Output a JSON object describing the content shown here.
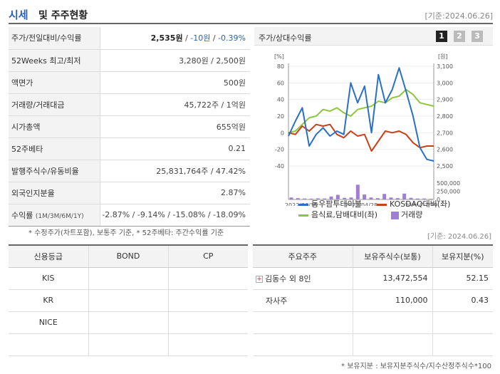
{
  "header": {
    "title_part1": "시세",
    "title_part2": "및 주주현황",
    "date": "[기준:2024.06.26]"
  },
  "quote": {
    "price_label": "주가/전일대비/수익률",
    "price": "2,535원",
    "change": "-10원",
    "change_rate": "-0.39%",
    "week52_label": "52Weeks 최고/최저",
    "week52_value": "3,280원 / 2,500원",
    "face_label": "액면가",
    "face_value": "500원",
    "volume_label": "거래량/거래대금",
    "volume_value": "45,722주 / 1억원",
    "mcap_label": "시가총액",
    "mcap_value": "655억원",
    "beta_label": "52주베타",
    "beta_value": "0.21",
    "shares_label": "발행주식수/유동비율",
    "shares_value": "25,831,764주 / 47.42%",
    "foreign_label": "외국인지분율",
    "foreign_value": "2.87%",
    "return_label": "수익률",
    "return_period": "(1M/3M/6M/1Y)",
    "return_value": "-2.87% / -9.14% / -15.08% / -18.09%",
    "footnote": "* 수정주가(차트포함), 보통주 기준, * 52주베타: 주간수익률 기준",
    "date2": "[기준: 2024.06.26]"
  },
  "chart_panel": {
    "title": "주가/상대수익률",
    "pages": [
      "1",
      "2",
      "3"
    ]
  },
  "chart_data": {
    "type": "line",
    "x_tick_labels": [
      "2022/06/30",
      "2023/04/28",
      "2024/02/29"
    ],
    "y_left_unit": "[%]",
    "y_left_ticks": [
      "80",
      "60",
      "40",
      "20",
      "0",
      "-20",
      "-40"
    ],
    "y_left_range": [
      -40,
      80
    ],
    "y_right_unit": "[원]",
    "y_right_ticks": [
      "3,100",
      "3,000",
      "2,900",
      "2,800",
      "2,700",
      "2,600",
      "2,500"
    ],
    "y_right_range": [
      2500,
      3100
    ],
    "y_volume_ticks": [
      "500,000",
      "250,000",
      "0"
    ],
    "y_volume_range": [
      0,
      500000
    ],
    "series": [
      {
        "name": "동우팜투테이블",
        "axis": "right",
        "color": "#2a6fc4",
        "values": [
          2680,
          2770,
          2850,
          2620,
          2690,
          2730,
          2680,
          2710,
          2690,
          3000,
          2880,
          2980,
          2700,
          3050,
          2880,
          2960,
          3090,
          2950,
          2800,
          2610,
          2540,
          2530
        ]
      },
      {
        "name": "KOSDAQ대비(좌)",
        "axis": "left",
        "color": "#c8401a",
        "values": [
          0,
          -2,
          8,
          2,
          10,
          8,
          10,
          -2,
          -6,
          2,
          -4,
          -2,
          -22,
          -10,
          2,
          0,
          2,
          -2,
          -12,
          -18,
          -16,
          -16
        ]
      },
      {
        "name": "음식료,담배대비(좌)",
        "axis": "left",
        "color": "#8cc63f",
        "values": [
          0,
          2,
          10,
          18,
          20,
          28,
          26,
          30,
          24,
          20,
          28,
          30,
          32,
          38,
          36,
          42,
          44,
          52,
          46,
          36,
          34,
          32
        ]
      },
      {
        "name": "거래량",
        "type": "bar",
        "axis": "volume",
        "color": "#9f7fd6",
        "values": [
          60000,
          40000,
          30000,
          25000,
          35000,
          30000,
          90000,
          140000,
          50000,
          60000,
          450000,
          150000,
          60000,
          40000,
          170000,
          60000,
          40000,
          180000,
          50000,
          30000,
          30000,
          20000
        ]
      }
    ]
  },
  "credit": {
    "headers": [
      "신용등급",
      "BOND",
      "CP"
    ],
    "rows": [
      [
        "KIS",
        "",
        ""
      ],
      [
        "KR",
        "",
        ""
      ],
      [
        "NICE",
        "",
        ""
      ],
      [
        "",
        "",
        ""
      ]
    ]
  },
  "holders": {
    "headers": [
      "주요주주",
      "보유주식수(보통)",
      "보유지분(%)"
    ],
    "rows": [
      [
        "김동수 외 8인",
        "13,472,554",
        "52.15"
      ],
      [
        "자사주",
        "110,000",
        "0.43"
      ],
      [
        "",
        "",
        ""
      ],
      [
        "",
        "",
        ""
      ]
    ],
    "footnote": "* 보유지분 : 보유지분주식수/지수산정주식수*100"
  }
}
